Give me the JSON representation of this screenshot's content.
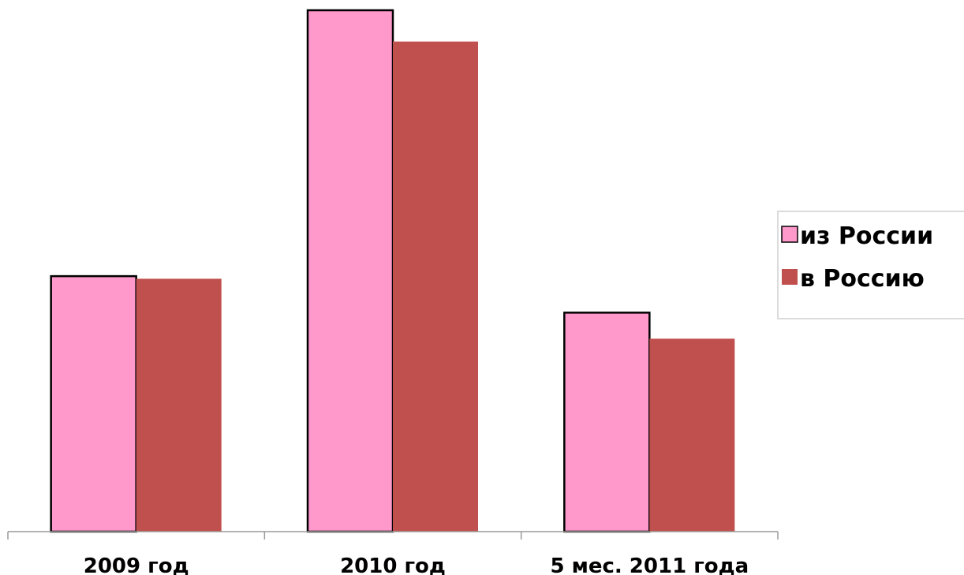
{
  "chart_data": {
    "type": "bar",
    "title": "",
    "xlabel": "",
    "ylabel": "",
    "categories": [
      "2009 год",
      "2010 год",
      "5 мес. 2011 года"
    ],
    "series": [
      {
        "name": "из России",
        "color": "#ff99cc",
        "outlined": true,
        "values": [
          49,
          100,
          42
        ]
      },
      {
        "name": "в Россию",
        "color": "#c0504d",
        "outlined": false,
        "values": [
          48.5,
          94,
          37
        ]
      }
    ],
    "ylim": [
      0,
      100
    ],
    "y_axis_visible": false,
    "grid": false,
    "legend": {
      "position": "right"
    }
  }
}
